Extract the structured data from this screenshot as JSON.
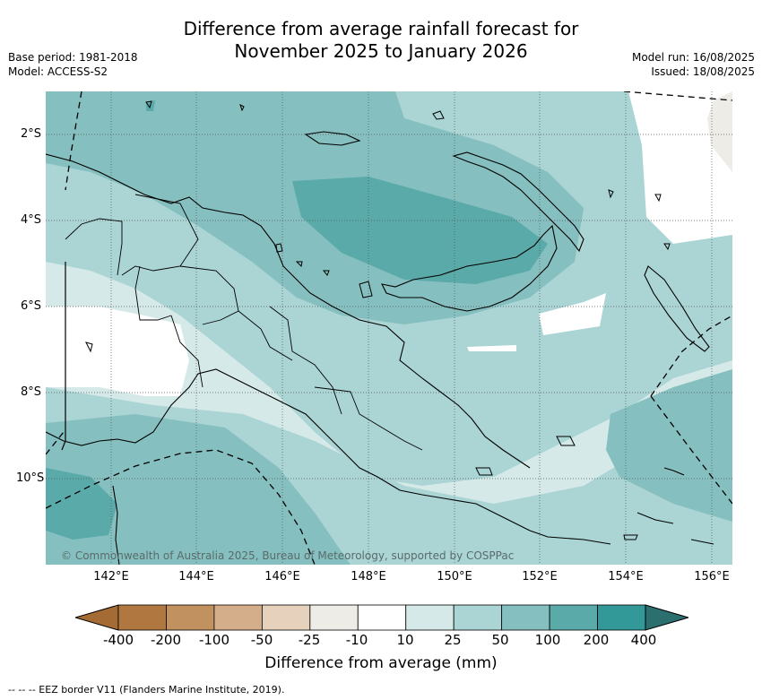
{
  "title_line1": "Difference from average rainfall forecast for",
  "title_line2": "November 2025 to January 2026",
  "base_period": "Base period: 1981-2018",
  "model": "Model: ACCESS-S2",
  "model_run": "Model run: 16/08/2025",
  "issued": "Issued: 18/08/2025",
  "lat_labels": [
    "2°S",
    "4°S",
    "6°S",
    "8°S",
    "10°S"
  ],
  "lon_labels": [
    "142°E",
    "144°E",
    "146°E",
    "148°E",
    "150°E",
    "152°E",
    "154°E",
    "156°E"
  ],
  "copyright": "© Commonwealth of Australia 2025, Bureau of Meteorology, supported by COSPPac",
  "legend": {
    "title": "Difference from average (mm)",
    "ticks": [
      "-400",
      "-200",
      "-100",
      "-50",
      "-25",
      "-10",
      "10",
      "25",
      "50",
      "100",
      "200",
      "400"
    ],
    "colors": [
      "#a56b35",
      "#b07840",
      "#c1915f",
      "#d4ae8b",
      "#e6d1bd",
      "#eeece7",
      "#ffffff",
      "#d6e9e9",
      "#abd4d4",
      "#86bfbf",
      "#5aaaaa",
      "#339898",
      "#2b6f6f"
    ]
  },
  "footnote": "--  --  -- EEZ border V11 (Flanders Marine Institute, 2019)."
}
